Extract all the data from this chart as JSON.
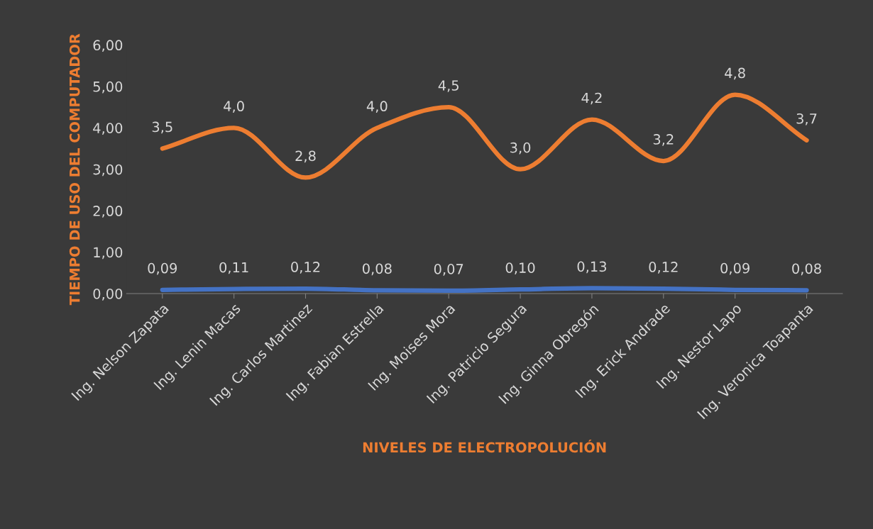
{
  "chart_data": {
    "type": "line",
    "xlabel": "NIVELES DE ELECTROPOLUCIÓN",
    "ylabel": "TIEMPO DE USO DEL COMPUTADOR",
    "categories": [
      "Ing. Nelson Zapata",
      "Ing. Lenin Macas",
      "Ing. Carlos Martinez",
      "Ing. Fabian Estrella",
      "Ing. Moises Mora",
      "Ing. Patricio Segura",
      "Ing. Ginna Obregón",
      "Ing. Erick Andrade",
      "Ing. Nestor Lapo",
      "Ing. Veronica Toapanta"
    ],
    "series": [
      {
        "color": "#ed7d31",
        "values": [
          3.5,
          4.0,
          2.8,
          4.0,
          4.5,
          3.0,
          4.2,
          3.2,
          4.8,
          3.7
        ],
        "value_labels": [
          "3,5",
          "4,0",
          "2,8",
          "4,0",
          "4,5",
          "3,0",
          "4,2",
          "3,2",
          "4,8",
          "3,7"
        ]
      },
      {
        "color": "#4472c4",
        "values": [
          0.09,
          0.11,
          0.12,
          0.08,
          0.07,
          0.1,
          0.13,
          0.12,
          0.09,
          0.08
        ],
        "value_labels": [
          "0,09",
          "0,11",
          "0,12",
          "0,08",
          "0,07",
          "0,10",
          "0,13",
          "0,12",
          "0,09",
          "0,08"
        ]
      }
    ],
    "ylim": [
      0,
      6
    ],
    "yticks": [
      {
        "value": 0,
        "label": "0,00"
      },
      {
        "value": 1,
        "label": "1,00"
      },
      {
        "value": 2,
        "label": "2,00"
      },
      {
        "value": 3,
        "label": "3,00"
      },
      {
        "value": 4,
        "label": "4,00"
      },
      {
        "value": 5,
        "label": "5,00"
      },
      {
        "value": 6,
        "label": "6,00"
      }
    ],
    "grid": false,
    "marker": "none",
    "line_style": "solid"
  }
}
